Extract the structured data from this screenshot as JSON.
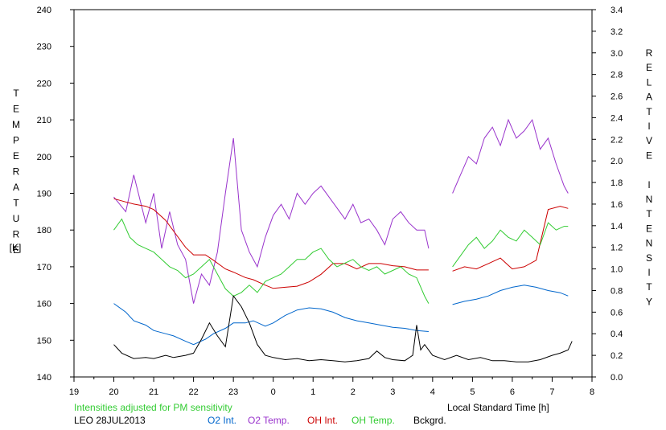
{
  "chart_data": {
    "type": "line",
    "title": "",
    "ylabel_left": "TEMPERATURE",
    "ylabel_left_unit": "[K]",
    "ylabel_right": "RELATIVE INTENSITY",
    "xlabel": "Local Standard Time [h]",
    "xlim": [
      19,
      8
    ],
    "ylim_left": [
      140,
      240
    ],
    "ylim_right": [
      0.0,
      3.4
    ],
    "x_tick_labels": [
      "19",
      "20",
      "21",
      "22",
      "23",
      "0",
      "1",
      "2",
      "3",
      "4",
      "5",
      "6",
      "7",
      "8"
    ],
    "y_left_ticks": [
      "140",
      "150",
      "160",
      "170",
      "180",
      "190",
      "200",
      "210",
      "220",
      "230",
      "240"
    ],
    "y_right_ticks": [
      "0.0",
      "0.2",
      "0.4",
      "0.6",
      "0.8",
      "1.0",
      "1.2",
      "1.4",
      "1.6",
      "1.8",
      "2.0",
      "2.2",
      "2.4",
      "2.6",
      "2.8",
      "3.0",
      "3.2",
      "3.4"
    ],
    "annotation": "Intensities adjusted for PM sensitivity",
    "station_date": "LEO 28JUL2013",
    "grid": false,
    "series": [
      {
        "name": "O2 Int.",
        "axis": "right",
        "color": "#0066cc",
        "points": [
          [
            20.0,
            0.68
          ],
          [
            20.3,
            0.6
          ],
          [
            20.5,
            0.52
          ],
          [
            20.8,
            0.48
          ],
          [
            21.0,
            0.43
          ],
          [
            21.3,
            0.4
          ],
          [
            21.5,
            0.38
          ],
          [
            21.8,
            0.33
          ],
          [
            22.0,
            0.3
          ],
          [
            22.3,
            0.35
          ],
          [
            22.5,
            0.4
          ],
          [
            22.8,
            0.45
          ],
          [
            23.0,
            0.5
          ],
          [
            23.3,
            0.5
          ],
          [
            23.5,
            0.52
          ],
          [
            23.8,
            0.47
          ],
          [
            24.0,
            0.5
          ],
          [
            24.3,
            0.57
          ],
          [
            24.6,
            0.62
          ],
          [
            24.9,
            0.64
          ],
          [
            25.2,
            0.63
          ],
          [
            25.5,
            0.6
          ],
          [
            25.8,
            0.55
          ],
          [
            26.1,
            0.52
          ],
          [
            26.4,
            0.5
          ],
          [
            26.7,
            0.48
          ],
          [
            27.0,
            0.46
          ],
          [
            27.3,
            0.45
          ],
          [
            27.6,
            0.43
          ],
          [
            27.9,
            0.42
          ],
          [
            28.5,
            0.67
          ],
          [
            28.8,
            0.7
          ],
          [
            29.1,
            0.72
          ],
          [
            29.4,
            0.75
          ],
          [
            29.7,
            0.8
          ],
          [
            30.0,
            0.83
          ],
          [
            30.3,
            0.85
          ],
          [
            30.6,
            0.83
          ],
          [
            30.9,
            0.8
          ],
          [
            31.2,
            0.78
          ],
          [
            31.4,
            0.75
          ]
        ]
      },
      {
        "name": "O2 Temp.",
        "axis": "left",
        "color": "#9933cc",
        "points": [
          [
            20.0,
            189
          ],
          [
            20.3,
            185
          ],
          [
            20.5,
            195
          ],
          [
            20.8,
            182
          ],
          [
            21.0,
            190
          ],
          [
            21.2,
            175
          ],
          [
            21.4,
            185
          ],
          [
            21.6,
            176
          ],
          [
            21.8,
            172
          ],
          [
            22.0,
            160
          ],
          [
            22.2,
            168
          ],
          [
            22.4,
            165
          ],
          [
            22.6,
            174
          ],
          [
            22.8,
            190
          ],
          [
            23.0,
            205
          ],
          [
            23.2,
            180
          ],
          [
            23.4,
            174
          ],
          [
            23.6,
            170
          ],
          [
            23.8,
            178
          ],
          [
            24.0,
            184
          ],
          [
            24.2,
            187
          ],
          [
            24.4,
            183
          ],
          [
            24.6,
            190
          ],
          [
            24.8,
            187
          ],
          [
            25.0,
            190
          ],
          [
            25.2,
            192
          ],
          [
            25.4,
            189
          ],
          [
            25.6,
            186
          ],
          [
            25.8,
            183
          ],
          [
            26.0,
            187
          ],
          [
            26.2,
            182
          ],
          [
            26.4,
            183
          ],
          [
            26.6,
            180
          ],
          [
            26.8,
            176
          ],
          [
            27.0,
            183
          ],
          [
            27.2,
            185
          ],
          [
            27.4,
            182
          ],
          [
            27.6,
            180
          ],
          [
            27.8,
            180
          ],
          [
            27.9,
            175
          ],
          [
            28.5,
            190
          ],
          [
            28.7,
            195
          ],
          [
            28.9,
            200
          ],
          [
            29.1,
            198
          ],
          [
            29.3,
            205
          ],
          [
            29.5,
            208
          ],
          [
            29.7,
            203
          ],
          [
            29.9,
            210
          ],
          [
            30.1,
            205
          ],
          [
            30.3,
            207
          ],
          [
            30.5,
            210
          ],
          [
            30.7,
            202
          ],
          [
            30.9,
            205
          ],
          [
            31.1,
            198
          ],
          [
            31.3,
            192
          ],
          [
            31.4,
            190
          ]
        ]
      },
      {
        "name": "OH Int.",
        "axis": "right",
        "color": "#cc0000",
        "points": [
          [
            20.0,
            1.65
          ],
          [
            20.3,
            1.62
          ],
          [
            20.5,
            1.6
          ],
          [
            20.8,
            1.58
          ],
          [
            21.0,
            1.55
          ],
          [
            21.3,
            1.45
          ],
          [
            21.5,
            1.35
          ],
          [
            21.8,
            1.2
          ],
          [
            22.0,
            1.13
          ],
          [
            22.3,
            1.13
          ],
          [
            22.5,
            1.08
          ],
          [
            22.8,
            1.0
          ],
          [
            23.0,
            0.97
          ],
          [
            23.3,
            0.92
          ],
          [
            23.5,
            0.9
          ],
          [
            23.8,
            0.85
          ],
          [
            24.0,
            0.82
          ],
          [
            24.3,
            0.83
          ],
          [
            24.6,
            0.84
          ],
          [
            24.9,
            0.88
          ],
          [
            25.2,
            0.95
          ],
          [
            25.5,
            1.05
          ],
          [
            25.8,
            1.05
          ],
          [
            26.1,
            1.0
          ],
          [
            26.4,
            1.05
          ],
          [
            26.7,
            1.05
          ],
          [
            27.0,
            1.03
          ],
          [
            27.3,
            1.02
          ],
          [
            27.6,
            0.99
          ],
          [
            27.9,
            0.99
          ],
          [
            28.5,
            0.98
          ],
          [
            28.8,
            1.02
          ],
          [
            29.1,
            1.0
          ],
          [
            29.4,
            1.05
          ],
          [
            29.7,
            1.1
          ],
          [
            30.0,
            1.0
          ],
          [
            30.3,
            1.02
          ],
          [
            30.6,
            1.08
          ],
          [
            30.9,
            1.55
          ],
          [
            31.2,
            1.58
          ],
          [
            31.4,
            1.56
          ]
        ]
      },
      {
        "name": "OH Temp.",
        "axis": "left",
        "color": "#33cc33",
        "points": [
          [
            20.0,
            180
          ],
          [
            20.2,
            183
          ],
          [
            20.4,
            178
          ],
          [
            20.6,
            176
          ],
          [
            20.8,
            175
          ],
          [
            21.0,
            174
          ],
          [
            21.2,
            172
          ],
          [
            21.4,
            170
          ],
          [
            21.6,
            169
          ],
          [
            21.8,
            167
          ],
          [
            22.0,
            168
          ],
          [
            22.2,
            170
          ],
          [
            22.4,
            172
          ],
          [
            22.6,
            168
          ],
          [
            22.8,
            164
          ],
          [
            23.0,
            162
          ],
          [
            23.2,
            163
          ],
          [
            23.4,
            165
          ],
          [
            23.6,
            163
          ],
          [
            23.8,
            166
          ],
          [
            24.0,
            167
          ],
          [
            24.2,
            168
          ],
          [
            24.4,
            170
          ],
          [
            24.6,
            172
          ],
          [
            24.8,
            172
          ],
          [
            25.0,
            174
          ],
          [
            25.2,
            175
          ],
          [
            25.4,
            172
          ],
          [
            25.6,
            170
          ],
          [
            25.8,
            171
          ],
          [
            26.0,
            172
          ],
          [
            26.2,
            170
          ],
          [
            26.4,
            169
          ],
          [
            26.6,
            170
          ],
          [
            26.8,
            168
          ],
          [
            27.0,
            169
          ],
          [
            27.2,
            170
          ],
          [
            27.4,
            168
          ],
          [
            27.6,
            167
          ],
          [
            27.8,
            162
          ],
          [
            27.9,
            160
          ],
          [
            28.5,
            170
          ],
          [
            28.7,
            173
          ],
          [
            28.9,
            176
          ],
          [
            29.1,
            178
          ],
          [
            29.3,
            175
          ],
          [
            29.5,
            177
          ],
          [
            29.7,
            180
          ],
          [
            29.9,
            178
          ],
          [
            30.1,
            177
          ],
          [
            30.3,
            180
          ],
          [
            30.5,
            178
          ],
          [
            30.7,
            176
          ],
          [
            30.9,
            182
          ],
          [
            31.1,
            180
          ],
          [
            31.3,
            181
          ],
          [
            31.4,
            181
          ]
        ]
      },
      {
        "name": "Bckgrd.",
        "axis": "right",
        "color": "#000000",
        "points": [
          [
            20.0,
            0.3
          ],
          [
            20.2,
            0.22
          ],
          [
            20.5,
            0.17
          ],
          [
            20.8,
            0.18
          ],
          [
            21.0,
            0.17
          ],
          [
            21.3,
            0.2
          ],
          [
            21.5,
            0.18
          ],
          [
            21.8,
            0.2
          ],
          [
            22.0,
            0.22
          ],
          [
            22.2,
            0.35
          ],
          [
            22.4,
            0.5
          ],
          [
            22.6,
            0.38
          ],
          [
            22.8,
            0.28
          ],
          [
            23.0,
            0.75
          ],
          [
            23.2,
            0.65
          ],
          [
            23.4,
            0.5
          ],
          [
            23.6,
            0.3
          ],
          [
            23.8,
            0.2
          ],
          [
            24.0,
            0.18
          ],
          [
            24.3,
            0.16
          ],
          [
            24.6,
            0.17
          ],
          [
            24.9,
            0.15
          ],
          [
            25.2,
            0.16
          ],
          [
            25.5,
            0.15
          ],
          [
            25.8,
            0.14
          ],
          [
            26.1,
            0.15
          ],
          [
            26.4,
            0.17
          ],
          [
            26.6,
            0.24
          ],
          [
            26.8,
            0.18
          ],
          [
            27.0,
            0.16
          ],
          [
            27.3,
            0.15
          ],
          [
            27.5,
            0.2
          ],
          [
            27.6,
            0.48
          ],
          [
            27.7,
            0.25
          ],
          [
            27.8,
            0.3
          ],
          [
            28.0,
            0.2
          ],
          [
            28.3,
            0.16
          ],
          [
            28.6,
            0.2
          ],
          [
            28.9,
            0.16
          ],
          [
            29.2,
            0.18
          ],
          [
            29.5,
            0.15
          ],
          [
            29.8,
            0.15
          ],
          [
            30.1,
            0.14
          ],
          [
            30.4,
            0.14
          ],
          [
            30.7,
            0.16
          ],
          [
            31.0,
            0.2
          ],
          [
            31.2,
            0.22
          ],
          [
            31.4,
            0.25
          ],
          [
            31.5,
            0.33
          ]
        ]
      }
    ]
  },
  "legend": {
    "o2_int": "O2 Int.",
    "o2_temp": "O2 Temp.",
    "oh_int": "OH Int.",
    "oh_temp": "OH Temp.",
    "bckgrd": "Bckgrd."
  }
}
